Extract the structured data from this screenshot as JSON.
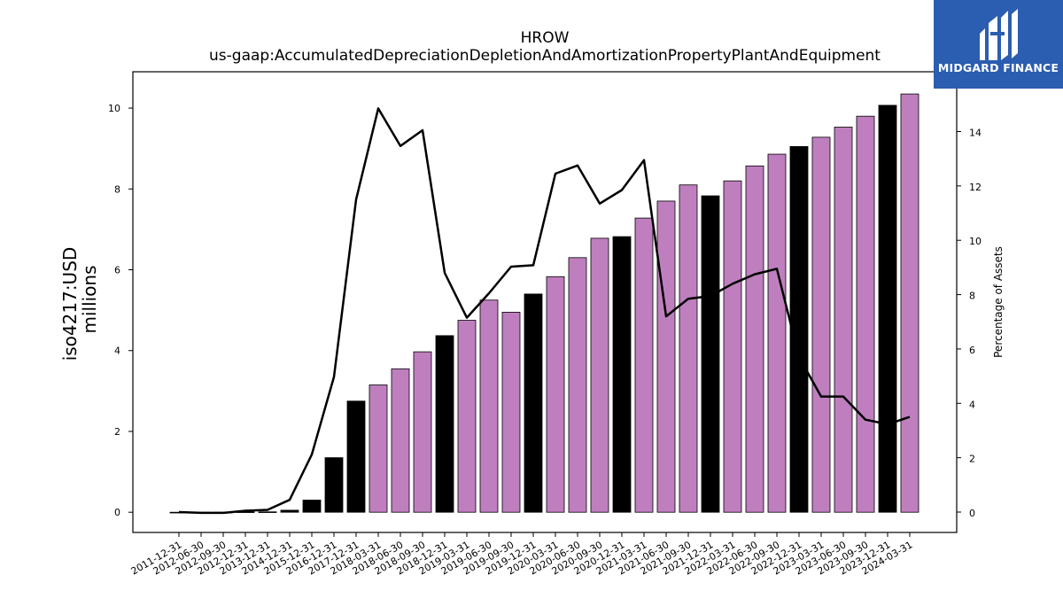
{
  "logo": {
    "name": "MIDGARD FINANCE"
  },
  "chart_data": {
    "type": "bar",
    "title": "HROW",
    "subtitle": "us-gaap:AccumulatedDepreciationDepletionAndAmortizationPropertyPlantAndEquipment",
    "ylabel": "iso4217:USD",
    "ylabel_unit": "millions",
    "y2label": "Percentage of Assets",
    "ylim": [
      -0.5,
      10.9
    ],
    "y2lim": [
      -0.75,
      16.2
    ],
    "yticks": [
      0,
      2,
      4,
      6,
      8,
      10
    ],
    "y2ticks": [
      0,
      2,
      4,
      6,
      8,
      10,
      12,
      14
    ],
    "categories": [
      "2011-12-31",
      "2012-06-30",
      "2012-09-30",
      "2012-12-31",
      "2013-12-31",
      "2014-12-31",
      "2015-12-31",
      "2016-12-31",
      "2017-12-31",
      "2018-03-31",
      "2018-06-30",
      "2018-09-30",
      "2018-12-31",
      "2019-03-31",
      "2019-06-30",
      "2019-09-30",
      "2019-12-31",
      "2020-03-31",
      "2020-06-30",
      "2020-09-30",
      "2020-12-31",
      "2021-03-31",
      "2021-06-30",
      "2021-09-30",
      "2021-12-31",
      "2022-03-31",
      "2022-06-30",
      "2022-09-30",
      "2022-12-31",
      "2023-03-31",
      "2023-06-30",
      "2023-09-30",
      "2023-12-31",
      "2024-03-31"
    ],
    "series": [
      {
        "type": "bar",
        "values": [
          0.0,
          0.0,
          0.0,
          0.01,
          0.01,
          0.05,
          0.3,
          1.35,
          2.75,
          3.15,
          3.55,
          3.97,
          4.37,
          4.75,
          5.25,
          4.95,
          5.4,
          5.83,
          6.3,
          6.78,
          6.82,
          7.28,
          7.7,
          8.1,
          7.83,
          8.2,
          8.57,
          8.86,
          9.05,
          9.28,
          9.53,
          9.8,
          10.07,
          10.35
        ],
        "colors": [
          "#000000",
          "#000000",
          "#000000",
          "#000000",
          "#000000",
          "#000000",
          "#000000",
          "#000000",
          "#000000",
          "#bf7fbf",
          "#bf7fbf",
          "#bf7fbf",
          "#000000",
          "#bf7fbf",
          "#bf7fbf",
          "#bf7fbf",
          "#000000",
          "#bf7fbf",
          "#bf7fbf",
          "#bf7fbf",
          "#000000",
          "#bf7fbf",
          "#bf7fbf",
          "#bf7fbf",
          "#000000",
          "#bf7fbf",
          "#bf7fbf",
          "#bf7fbf",
          "#000000",
          "#bf7fbf",
          "#bf7fbf",
          "#bf7fbf",
          "#000000",
          "#bf7fbf"
        ]
      },
      {
        "type": "line",
        "axis": "right",
        "color": "#000000",
        "values": [
          0.0,
          -0.03,
          -0.03,
          0.05,
          0.08,
          0.45,
          2.12,
          4.97,
          11.5,
          14.85,
          13.47,
          14.05,
          8.8,
          7.15,
          8.05,
          9.03,
          9.08,
          12.45,
          12.75,
          11.35,
          11.85,
          12.95,
          7.2,
          7.85,
          7.95,
          8.4,
          8.75,
          8.95,
          5.7,
          4.25,
          4.25,
          3.4,
          3.23,
          3.5
        ]
      }
    ]
  }
}
